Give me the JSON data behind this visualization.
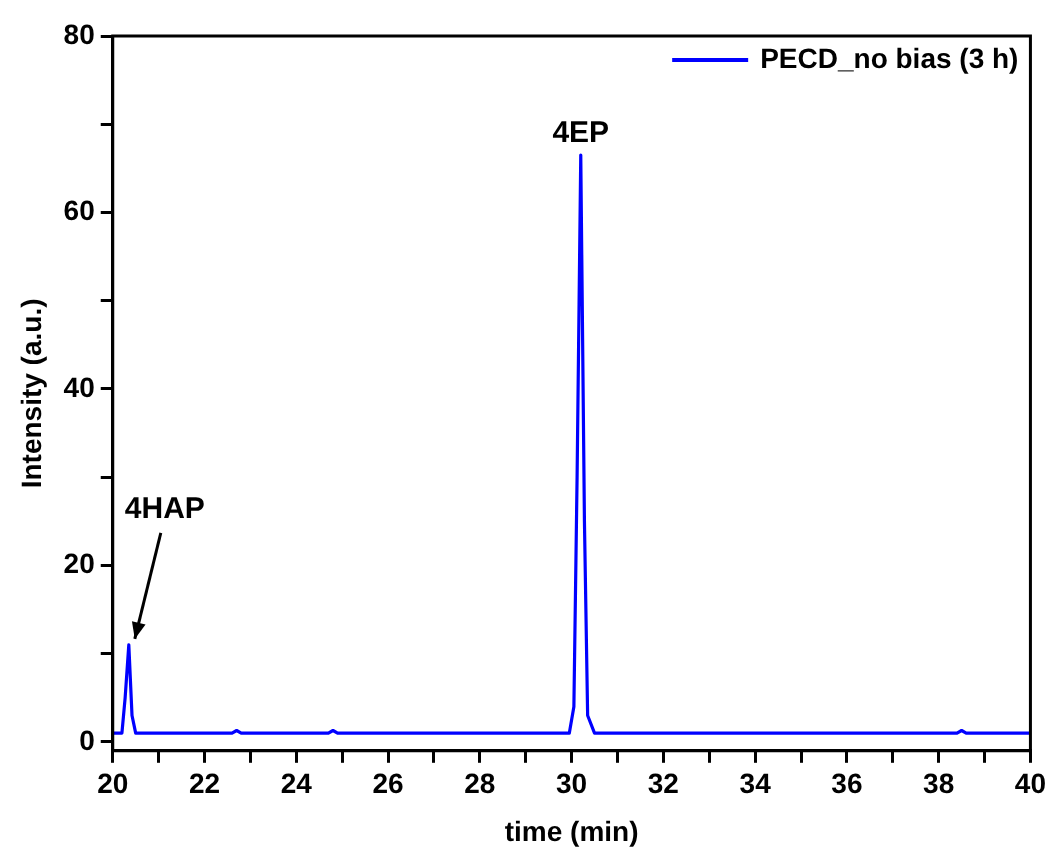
{
  "chart_data": {
    "type": "line",
    "xlabel": "time (min)",
    "ylabel": "Intensity (a.u.)",
    "xlim": [
      20,
      40
    ],
    "ylim": [
      -1,
      80
    ],
    "xticks": [
      20,
      {
        "value": 21,
        "label": null
      },
      22,
      {
        "value": 23,
        "label": null
      },
      24,
      {
        "value": 25,
        "label": null
      },
      26,
      {
        "value": 27,
        "label": null
      },
      28,
      {
        "value": 29,
        "label": null
      },
      30,
      {
        "value": 31,
        "label": null
      },
      32,
      {
        "value": 33,
        "label": null
      },
      34,
      {
        "value": 35,
        "label": null
      },
      36,
      {
        "value": 37,
        "label": null
      },
      38,
      {
        "value": 39,
        "label": null
      },
      40
    ],
    "yticks": [
      0,
      {
        "value": 10,
        "label": null
      },
      20,
      {
        "value": 30,
        "label": null
      },
      40,
      {
        "value": 50,
        "label": null
      },
      60,
      {
        "value": 70,
        "label": null
      },
      80
    ],
    "grid": false,
    "legend": "top right",
    "marker": "none",
    "line_style": "solid",
    "series": [
      {
        "name": "PECD_no bias (3 h)",
        "color": "#0000ff",
        "x": [
          20.0,
          20.2,
          20.27,
          20.35,
          20.42,
          20.5,
          21.5,
          22.6,
          22.7,
          22.8,
          24.7,
          24.8,
          24.9,
          26.5,
          28.0,
          29.95,
          30.05,
          30.12,
          30.2,
          30.28,
          30.35,
          30.5,
          32.0,
          34.0,
          36.0,
          38.4,
          38.5,
          38.6,
          40.0
        ],
        "values": [
          1.0,
          1.0,
          5,
          11,
          3,
          1.0,
          1.0,
          1.0,
          1.3,
          1.0,
          1.0,
          1.3,
          1.0,
          1.0,
          1.0,
          1.0,
          4,
          30,
          66.5,
          25,
          3,
          1.0,
          1.0,
          1.0,
          1.0,
          1.0,
          1.3,
          1.0,
          1.0
        ]
      }
    ],
    "annotations": [
      {
        "text": "4HAP",
        "x": 20.35,
        "y": 11
      },
      {
        "text": "4EP",
        "x": 30.2,
        "y": 66.5
      }
    ]
  }
}
